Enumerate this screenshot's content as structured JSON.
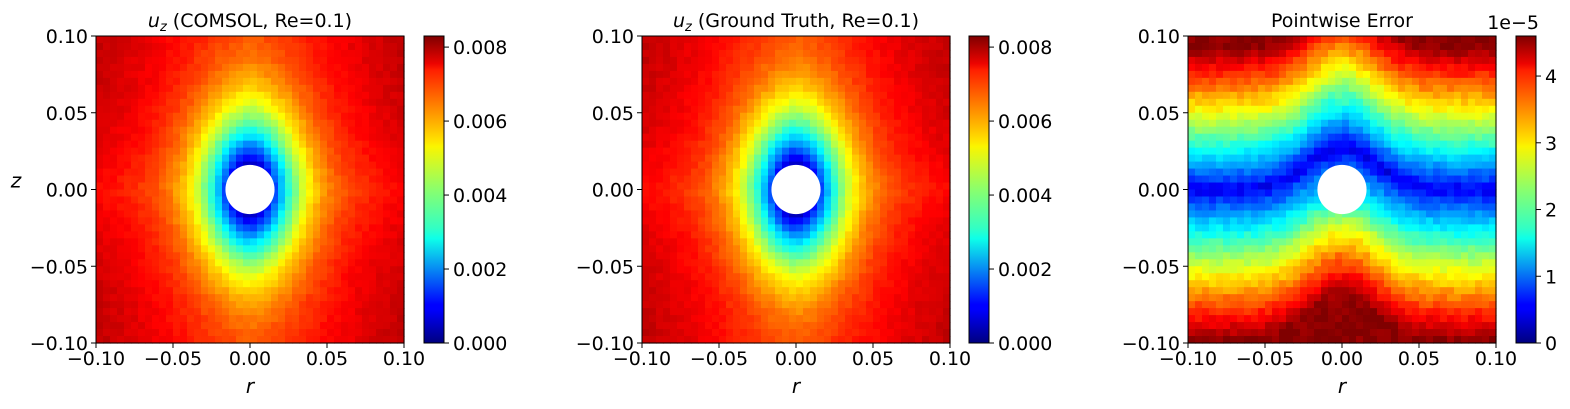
{
  "chart_data": [
    {
      "type": "heatmap",
      "title_var": "u",
      "title_sub": "z",
      "title_rest": " (COMSOL, Re=0.1)",
      "xlabel": "r",
      "ylabel": "z",
      "xlim": [
        -0.1,
        0.1
      ],
      "ylim": [
        -0.1,
        0.1
      ],
      "xticks": [
        "−0.10",
        "−0.05",
        "0.00",
        "0.05",
        "0.10"
      ],
      "yticks": [
        "−0.10",
        "−0.05",
        "0.00",
        "0.05",
        "0.10"
      ],
      "field": "velocity",
      "colorbar": {
        "range": [
          0,
          0.0083
        ],
        "ticks": [
          "0.000",
          "0.002",
          "0.004",
          "0.006",
          "0.008"
        ],
        "tick_values": [
          0,
          0.002,
          0.004,
          0.006,
          0.008
        ],
        "offset": ""
      },
      "colormap": "jet",
      "obstacle_radius": 0.011
    },
    {
      "type": "heatmap",
      "title_var": "u",
      "title_sub": "z",
      "title_rest": " (Ground Truth, Re=0.1)",
      "xlabel": "r",
      "ylabel": "",
      "xlim": [
        -0.1,
        0.1
      ],
      "ylim": [
        -0.1,
        0.1
      ],
      "xticks": [
        "−0.10",
        "−0.05",
        "0.00",
        "0.05",
        "0.10"
      ],
      "yticks": [
        "−0.10",
        "−0.05",
        "0.00",
        "0.05",
        "0.10"
      ],
      "field": "velocity",
      "colorbar": {
        "range": [
          0,
          0.0083
        ],
        "ticks": [
          "0.000",
          "0.002",
          "0.004",
          "0.006",
          "0.008"
        ],
        "tick_values": [
          0,
          0.002,
          0.004,
          0.006,
          0.008
        ],
        "offset": ""
      },
      "colormap": "jet",
      "obstacle_radius": 0.011
    },
    {
      "type": "heatmap",
      "title_var": "",
      "title_sub": "",
      "title_rest": "Pointwise Error",
      "xlabel": "r",
      "ylabel": "",
      "xlim": [
        -0.1,
        0.1
      ],
      "ylim": [
        -0.1,
        0.1
      ],
      "xticks": [
        "−0.10",
        "−0.05",
        "0.00",
        "0.05",
        "0.10"
      ],
      "yticks": [
        "−0.10",
        "−0.05",
        "0.00",
        "0.05",
        "0.10"
      ],
      "field": "error",
      "colorbar": {
        "range": [
          0,
          4.6
        ],
        "ticks": [
          "0",
          "1",
          "2",
          "3",
          "4"
        ],
        "tick_values": [
          0,
          1,
          2,
          3,
          4
        ],
        "offset": "1e−5"
      },
      "colormap": "jet",
      "obstacle_radius": 0.011
    }
  ]
}
